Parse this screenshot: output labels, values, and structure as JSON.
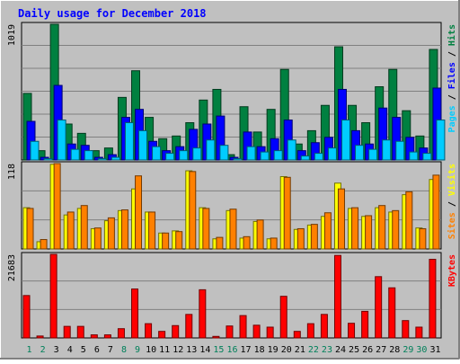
{
  "chart_data": {
    "type": "bar",
    "title": "Daily usage for December 2018",
    "categories": [
      "1",
      "2",
      "3",
      "4",
      "5",
      "6",
      "7",
      "8",
      "9",
      "10",
      "11",
      "12",
      "13",
      "14",
      "15",
      "16",
      "17",
      "18",
      "19",
      "20",
      "21",
      "22",
      "23",
      "24",
      "25",
      "26",
      "27",
      "28",
      "29",
      "30",
      "31"
    ],
    "weekend_days": [
      "1",
      "2",
      "8",
      "9",
      "15",
      "16",
      "22",
      "23",
      "29",
      "30"
    ],
    "panels": [
      {
        "name": "hits-files-pages",
        "ymax_label": "1019",
        "ylim": [
          0,
          1019
        ],
        "legend_labels": [
          {
            "text": "Pages",
            "color": "#00ccff"
          },
          {
            "text": "Files",
            "color": "#0000ff"
          },
          {
            "text": "Hits",
            "color": "#008040"
          }
        ],
        "series": [
          {
            "name": "Hits",
            "color": "#008040",
            "values": [
              500,
              70,
              1019,
              270,
              200,
              70,
              90,
              470,
              670,
              320,
              160,
              180,
              280,
              450,
              530,
              40,
              400,
              210,
              380,
              680,
              120,
              220,
              410,
              850,
              410,
              280,
              550,
              680,
              370,
              180,
              830
            ]
          },
          {
            "name": "Files",
            "color": "#0000ff",
            "values": [
              290,
              20,
              560,
              120,
              110,
              20,
              40,
              320,
              380,
              140,
              70,
              100,
              230,
              270,
              330,
              20,
              210,
              100,
              160,
              300,
              70,
              130,
              170,
              530,
              220,
              120,
              390,
              320,
              170,
              90,
              540
            ]
          },
          {
            "name": "Pages",
            "color": "#00ccff",
            "values": [
              140,
              10,
              300,
              80,
              70,
              10,
              20,
              280,
              220,
              100,
              50,
              70,
              90,
              150,
              110,
              10,
              100,
              60,
              70,
              150,
              30,
              50,
              90,
              300,
              110,
              80,
              150,
              140,
              60,
              50,
              300
            ]
          }
        ]
      },
      {
        "name": "visits-sites",
        "ymax_label": "118",
        "ylim": [
          0,
          118
        ],
        "legend_labels": [
          {
            "text": "Sites",
            "color": "#ff8000"
          },
          {
            "text": "Visits",
            "color": "#ffff00"
          }
        ],
        "series": [
          {
            "name": "Visits",
            "color": "#ffff00",
            "values": [
              57,
              10,
              117,
              47,
              56,
              28,
              39,
              53,
              83,
              51,
              22,
              25,
              108,
              57,
              14,
              53,
              15,
              38,
              14,
              100,
              27,
              33,
              45,
              91,
              56,
              45,
              57,
              51,
              75,
              29,
              96
            ]
          },
          {
            "name": "Sites",
            "color": "#ff8000",
            "values": [
              56,
              13,
              118,
              51,
              60,
              29,
              43,
              54,
              101,
              51,
              22,
              24,
              107,
              56,
              16,
              55,
              17,
              40,
              15,
              99,
              28,
              34,
              50,
              83,
              57,
              46,
              60,
              53,
              79,
              28,
              102
            ]
          }
        ]
      },
      {
        "name": "kbytes",
        "ymax_label": "21683",
        "ylim": [
          0,
          21683
        ],
        "legend_labels": [
          {
            "text": "KBytes",
            "color": "#ff0000"
          }
        ],
        "series": [
          {
            "name": "KBytes",
            "color": "#ff0000",
            "values": [
              11000,
              500,
              21683,
              3000,
              3000,
              800,
              800,
              2400,
              12700,
              3700,
              1700,
              3200,
              6100,
              12500,
              400,
              3100,
              5800,
              3300,
              2800,
              10800,
              1700,
              3700,
              6100,
              21400,
              3800,
              6900,
              15900,
              13000,
              4500,
              2800,
              20400
            ]
          }
        ]
      }
    ]
  }
}
